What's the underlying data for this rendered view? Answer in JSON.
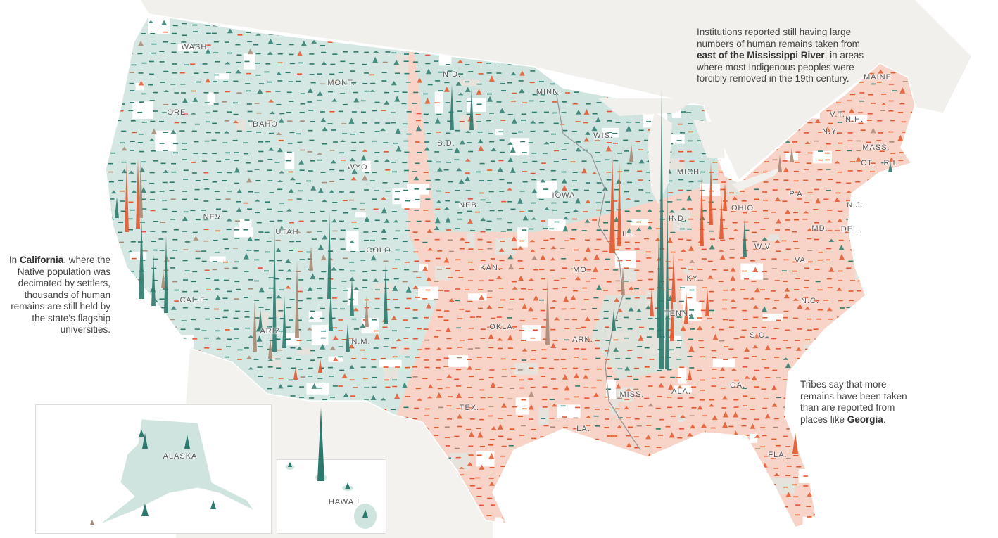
{
  "colors": {
    "teal_fill": "#cfe4df",
    "salmon_fill": "#f8d3c7",
    "neutral_fill": "#e6e2dc",
    "teal_spike": "#2b7a6d",
    "orange_spike": "#e2572c",
    "mixed_spike": "#a88a74",
    "land_background": "#f2f0ed"
  },
  "state_labels": [
    "WASH.",
    "MONT.",
    "N.D.",
    "MINN.",
    "WIS.",
    "MICH.",
    "ORE.",
    "IDAHO",
    "WYO.",
    "S.D.",
    "IOWA",
    "NEB.",
    "NEV.",
    "UTAH",
    "COLO.",
    "KAN.",
    "MO.",
    "ILL.",
    "IND.",
    "OHIO",
    "P.A.",
    "N.Y.",
    "V.T.",
    "N.H.",
    "MAINE",
    "MASS.",
    "CT.",
    "R.I.",
    "N.J.",
    "MD.",
    "DEL.",
    "W.V.",
    "VA.",
    "KY.",
    "TENN.",
    "N.C.",
    "S.C.",
    "GA.",
    "ALA.",
    "MISS.",
    "LA.",
    "ARK.",
    "OKLA.",
    "TEX.",
    "N.M.",
    "ARIZ.",
    "CALIF.",
    "FLA.",
    "ALASKA",
    "HAWAII"
  ],
  "annotations": {
    "east": {
      "pre": "Institutions reported still having large numbers of human remains taken from ",
      "bold": "east of the Mississippi River",
      "post": ", in areas where most Indigenous peoples were forcibly removed in the 19th century."
    },
    "california": {
      "pre": "In ",
      "bold": "California",
      "post": ", where the Native population was decimated by settlers, thousands of human remains are still held by the state’s flagship universities."
    },
    "georgia": {
      "pre": "Tribes say that more remains have been taken than are reported from places like ",
      "bold": "Georgia",
      "post": "."
    }
  }
}
